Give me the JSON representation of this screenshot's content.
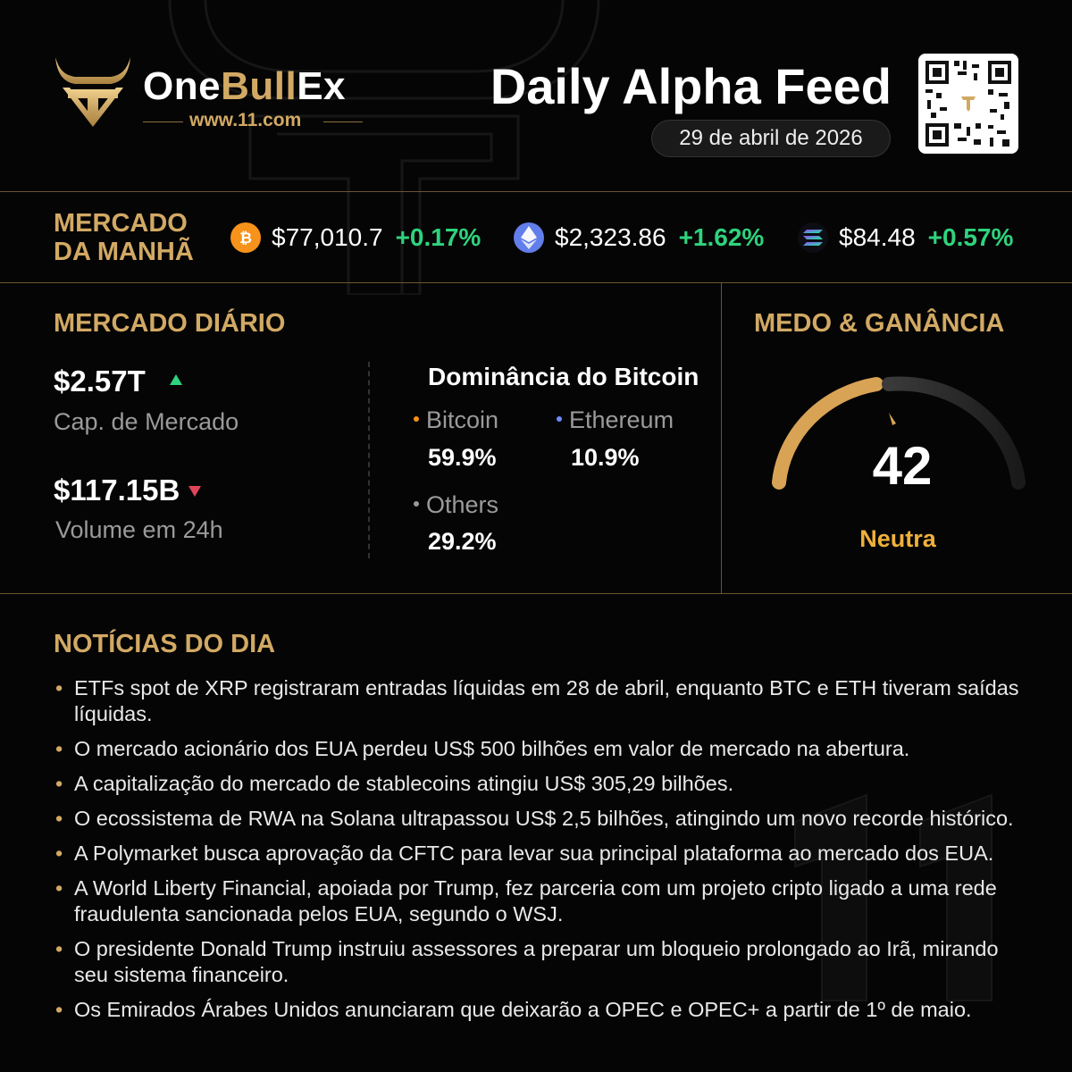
{
  "brand": {
    "one": "One",
    "bull": "Bull",
    "ex": "Ex",
    "site": "www.11.com"
  },
  "header": {
    "title": "Daily Alpha Feed",
    "date": "29 de abril de 2026"
  },
  "morning": {
    "title_line1": "MERCADO",
    "title_line2": "DA MANHÃ",
    "coins": [
      {
        "icon": "bitcoin-icon",
        "price": "$77,010.7",
        "change": "+0.17%"
      },
      {
        "icon": "ethereum-icon",
        "price": "$2,323.86",
        "change": "+1.62%"
      },
      {
        "icon": "solana-icon",
        "price": "$84.48",
        "change": "+0.57%"
      }
    ]
  },
  "daily": {
    "title": "MERCADO DIÁRIO",
    "market_cap": {
      "value": "$2.57T",
      "label": "Cap. de Mercado",
      "direction": "up"
    },
    "volume": {
      "value": "$117.15B",
      "label": "Volume em 24h",
      "direction": "down"
    },
    "dominance": {
      "title": "Dominância do Bitcoin",
      "items": [
        {
          "label": "Bitcoin",
          "value": "59.9%",
          "color": "#f7931a"
        },
        {
          "label": "Ethereum",
          "value": "10.9%",
          "color": "#6a8cff"
        },
        {
          "label": "Others",
          "value": "29.2%",
          "color": "#9a9a9a"
        }
      ]
    }
  },
  "fear_greed": {
    "title": "MEDO & GANÂNCIA",
    "value": "42",
    "label": "Neutra"
  },
  "news": {
    "title": "NOTÍCIAS DO DIA",
    "items": [
      "ETFs spot de XRP registraram entradas líquidas em 28 de abril, enquanto BTC e ETH tiveram saídas líquidas.",
      "O mercado acionário dos EUA perdeu US$ 500 bilhões em valor de mercado na abertura.",
      "A capitalização do mercado de stablecoins atingiu US$ 305,29 bilhões.",
      "O ecossistema de RWA na Solana ultrapassou US$ 2,5 bilhões, atingindo um novo recorde histórico.",
      "A Polymarket busca aprovação da CFTC para levar sua principal plataforma ao mercado dos EUA.",
      "A World Liberty Financial, apoiada por Trump, fez parceria com um projeto cripto ligado a uma rede fraudulenta sancionada pelos EUA, segundo o WSJ.",
      "O presidente Donald Trump instruiu assessores a preparar um bloqueio prolongado ao Irã, mirando seu sistema financeiro.",
      "Os Emirados Árabes Unidos anunciaram que deixarão a OPEC e OPEC+ a partir de 1º de maio."
    ]
  },
  "colors": {
    "gold": "#d2a964",
    "positive": "#2fd37d",
    "negative": "#e0455a",
    "neutral": "#f0b03a"
  }
}
